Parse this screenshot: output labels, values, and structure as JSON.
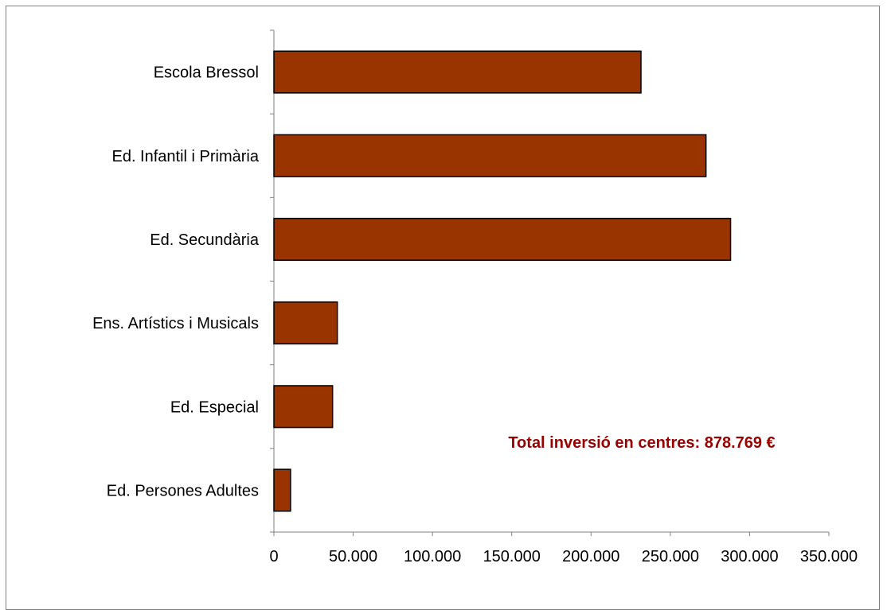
{
  "chart_data": {
    "type": "bar",
    "orientation": "horizontal",
    "categories": [
      "Escola Bressol",
      "Ed. Infantil i Primària",
      "Ed. Secundària",
      "Ens. Artístics i Musicals",
      "Ed. Especial",
      "Ed. Persones Adultes"
    ],
    "values": [
      231500,
      272500,
      288000,
      40000,
      37000,
      10500
    ],
    "xlim": [
      0,
      350000
    ],
    "xticks": [
      0,
      50000,
      100000,
      150000,
      200000,
      250000,
      300000,
      350000
    ],
    "xtick_labels": [
      "0",
      "50.000",
      "100.000",
      "150.000",
      "200.000",
      "250.000",
      "300.000",
      "350.000"
    ],
    "title": "",
    "xlabel": "",
    "ylabel": "",
    "annotation": "Total inversió en centres: 878.769 €",
    "grid": false,
    "legend": "none",
    "colors": {
      "bar_fill": "#993300",
      "bar_stroke": "#000000",
      "annotation": "#990000",
      "axis": "#808080"
    }
  }
}
